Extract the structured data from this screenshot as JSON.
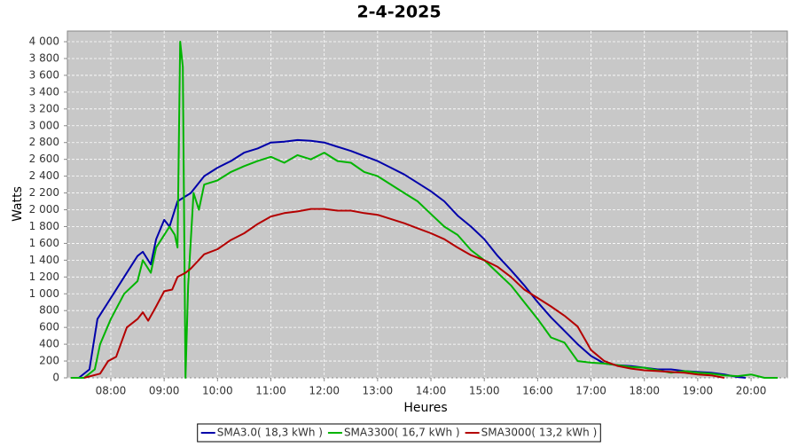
{
  "chart_data": {
    "type": "line",
    "title": "2-4-2025",
    "x_label": "Heures",
    "y_label": "Watts",
    "xlim": [
      7.186,
      20.68
    ],
    "ylim": [
      0,
      4127
    ],
    "xticks": [
      {
        "value": 8,
        "label": "08:00"
      },
      {
        "value": 9,
        "label": "09:00"
      },
      {
        "value": 10,
        "label": "10:00"
      },
      {
        "value": 11,
        "label": "11:00"
      },
      {
        "value": 12,
        "label": "12:00"
      },
      {
        "value": 13,
        "label": "13:00"
      },
      {
        "value": 14,
        "label": "14:00"
      },
      {
        "value": 15,
        "label": "15:00"
      },
      {
        "value": 16,
        "label": "16:00"
      },
      {
        "value": 17,
        "label": "17:00"
      },
      {
        "value": 18,
        "label": "18:00"
      },
      {
        "value": 19,
        "label": "19:00"
      },
      {
        "value": 20,
        "label": "20:00"
      }
    ],
    "yticks": [
      0,
      200,
      400,
      600,
      800,
      {
        "value": 1000,
        "label": "1 000"
      },
      {
        "value": 1200,
        "label": "1 200"
      },
      {
        "value": 1400,
        "label": "1 400"
      },
      {
        "value": 1600,
        "label": "1 600"
      },
      {
        "value": 1800,
        "label": "1 800"
      },
      {
        "value": 2000,
        "label": "2 000"
      },
      {
        "value": 2200,
        "label": "2 200"
      },
      {
        "value": 2400,
        "label": "2 400"
      },
      {
        "value": 2600,
        "label": "2 600"
      },
      {
        "value": 2800,
        "label": "2 800"
      },
      {
        "value": 3000,
        "label": "3 000"
      },
      {
        "value": 3200,
        "label": "3 200"
      },
      {
        "value": 3400,
        "label": "3 400"
      },
      {
        "value": 3600,
        "label": "3 600"
      },
      {
        "value": 3800,
        "label": "3 800"
      },
      {
        "value": 4000,
        "label": "4 000"
      }
    ],
    "grid": true,
    "legend": "bottom",
    "series": [
      {
        "name": "SMA3.0( 18,3 kWh )",
        "color": "#0000aa",
        "x": [
          7.4,
          7.6,
          7.75,
          8.0,
          8.25,
          8.5,
          8.6,
          8.75,
          8.85,
          9.0,
          9.1,
          9.25,
          9.5,
          9.75,
          10,
          10.25,
          10.5,
          10.75,
          11,
          11.25,
          11.5,
          11.75,
          12,
          12.25,
          12.5,
          12.75,
          13,
          13.25,
          13.5,
          13.75,
          14,
          14.25,
          14.5,
          14.75,
          15,
          15.25,
          15.5,
          15.75,
          16,
          16.25,
          16.5,
          16.75,
          17,
          17.25,
          17.5,
          17.75,
          18,
          18.25,
          18.5,
          18.75,
          19,
          19.25,
          19.5,
          19.75,
          19.9
        ],
        "values": [
          0,
          100,
          700,
          950,
          1200,
          1450,
          1500,
          1350,
          1650,
          1880,
          1800,
          2100,
          2200,
          2400,
          2500,
          2580,
          2680,
          2730,
          2800,
          2810,
          2830,
          2820,
          2800,
          2750,
          2700,
          2640,
          2580,
          2500,
          2420,
          2320,
          2220,
          2100,
          1930,
          1800,
          1650,
          1450,
          1280,
          1100,
          900,
          720,
          560,
          400,
          260,
          170,
          150,
          140,
          120,
          100,
          100,
          80,
          70,
          60,
          40,
          10,
          0
        ]
      },
      {
        "name": "SMA3300( 16,7 kWh )",
        "color": "#00b400",
        "x": [
          7.25,
          7.5,
          7.7,
          7.8,
          8.0,
          8.25,
          8.5,
          8.6,
          8.75,
          8.85,
          9.0,
          9.1,
          9.2,
          9.25,
          9.3,
          9.35,
          9.4,
          9.45,
          9.55,
          9.65,
          9.75,
          10,
          10.25,
          10.5,
          10.75,
          11,
          11.25,
          11.5,
          11.75,
          12,
          12.25,
          12.5,
          12.75,
          13,
          13.25,
          13.5,
          13.75,
          14,
          14.25,
          14.5,
          14.75,
          15,
          15.25,
          15.5,
          15.75,
          16,
          16.25,
          16.5,
          16.75,
          17,
          17.25,
          17.5,
          17.75,
          18,
          18.25,
          18.5,
          18.75,
          19,
          19.25,
          19.5,
          19.75,
          20,
          20.25,
          20.5
        ],
        "values": [
          0,
          0,
          100,
          400,
          700,
          1000,
          1150,
          1400,
          1250,
          1550,
          1700,
          1800,
          1700,
          1550,
          4000,
          3700,
          0,
          1100,
          2200,
          2000,
          2300,
          2350,
          2450,
          2520,
          2580,
          2630,
          2560,
          2650,
          2600,
          2680,
          2580,
          2560,
          2450,
          2400,
          2300,
          2200,
          2100,
          1950,
          1800,
          1700,
          1520,
          1400,
          1250,
          1100,
          900,
          700,
          480,
          420,
          200,
          180,
          170,
          150,
          130,
          120,
          90,
          60,
          80,
          60,
          50,
          30,
          20,
          40,
          0,
          0
        ]
      },
      {
        "name": "SMA3000( 13,2 kWh )",
        "color": "#b40000",
        "x": [
          7.5,
          7.8,
          7.95,
          8.1,
          8.3,
          8.5,
          8.6,
          8.7,
          8.85,
          9.0,
          9.15,
          9.25,
          9.4,
          9.5,
          9.75,
          10,
          10.25,
          10.5,
          10.75,
          11,
          11.25,
          11.5,
          11.75,
          12,
          12.25,
          12.5,
          12.75,
          13,
          13.25,
          13.5,
          13.75,
          14,
          14.25,
          14.5,
          14.75,
          15,
          15.25,
          15.5,
          15.75,
          16,
          16.25,
          16.5,
          16.75,
          17,
          17.25,
          17.5,
          17.75,
          18,
          18.25,
          18.5,
          18.75,
          19,
          19.25,
          19.5
        ],
        "values": [
          0,
          50,
          200,
          250,
          600,
          700,
          780,
          680,
          850,
          1030,
          1050,
          1200,
          1250,
          1300,
          1470,
          1530,
          1640,
          1720,
          1830,
          1920,
          1960,
          1980,
          2010,
          2010,
          1990,
          1990,
          1960,
          1940,
          1890,
          1840,
          1780,
          1720,
          1650,
          1550,
          1460,
          1400,
          1320,
          1200,
          1050,
          950,
          850,
          740,
          610,
          330,
          200,
          140,
          110,
          90,
          80,
          70,
          60,
          40,
          30,
          0
        ]
      }
    ]
  }
}
